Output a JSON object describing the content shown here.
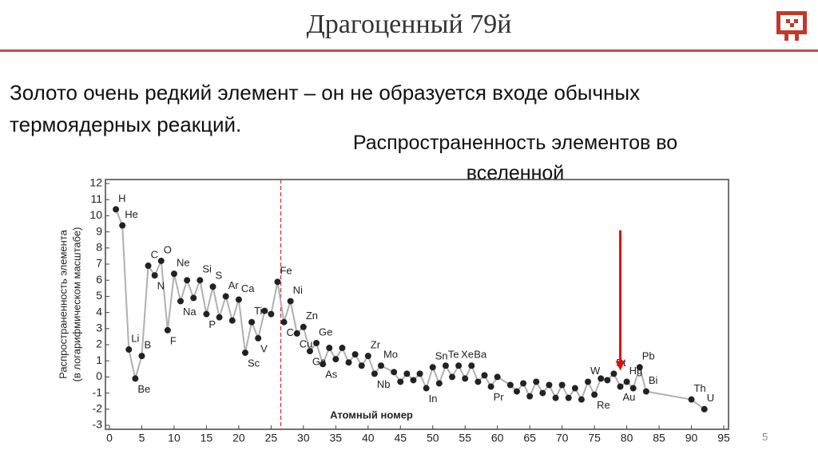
{
  "slide": {
    "title": "Драгоценный 79й",
    "text": [
      "Золото очень редкий элемент – он не образуется входе обычных",
      "термоядерных реакций."
    ],
    "page_number": "5"
  },
  "chart_data": {
    "type": "line",
    "title": "Распространенность элементов во вселенной",
    "xlabel": "Атомный номер",
    "ylabel": [
      "Распространенность элемента",
      "(в логарифмическом масштабе)"
    ],
    "x": [
      1,
      2,
      3,
      4,
      5,
      6,
      7,
      8,
      9,
      10,
      11,
      12,
      13,
      14,
      15,
      16,
      17,
      18,
      19,
      20,
      21,
      22,
      23,
      24,
      25,
      26,
      27,
      28,
      29,
      30,
      31,
      32,
      33,
      34,
      35,
      36,
      37,
      38,
      39,
      40,
      41,
      42,
      44,
      45,
      46,
      47,
      48,
      49,
      50,
      51,
      52,
      53,
      54,
      55,
      56,
      57,
      58,
      59,
      60,
      62,
      63,
      64,
      65,
      66,
      67,
      68,
      69,
      70,
      71,
      72,
      73,
      74,
      75,
      76,
      77,
      78,
      79,
      80,
      81,
      82,
      83,
      90,
      92
    ],
    "series": [
      {
        "name": "Распространенность",
        "color": "#b0b0b0",
        "marker_color": "#222222",
        "values": [
          10.4,
          9.4,
          1.7,
          -0.1,
          1.3,
          6.9,
          6.3,
          7.2,
          2.9,
          6.4,
          4.7,
          6.0,
          4.9,
          6.0,
          3.9,
          5.6,
          3.7,
          5.0,
          3.5,
          4.8,
          1.5,
          3.4,
          2.4,
          4.1,
          3.9,
          5.9,
          3.4,
          4.7,
          2.7,
          3.1,
          1.6,
          2.1,
          0.8,
          1.8,
          1.1,
          1.8,
          0.9,
          1.4,
          0.7,
          1.3,
          0.2,
          0.7,
          0.3,
          -0.3,
          0.2,
          -0.2,
          0.2,
          -0.7,
          0.6,
          -0.4,
          0.7,
          0,
          0.7,
          -0.1,
          0.7,
          -0.3,
          0.1,
          -0.6,
          0,
          -0.5,
          -0.9,
          -0.4,
          -1.2,
          -0.3,
          -1.0,
          -0.5,
          -1.3,
          -0.5,
          -1.3,
          -0.7,
          -1.4,
          -0.3,
          -1.1,
          -0.1,
          -0.2,
          0.2,
          -0.6,
          -0.3,
          -0.7,
          0.6,
          -0.9,
          -1.4,
          -2.0
        ]
      }
    ],
    "point_labels": [
      "H",
      "He",
      "Li",
      "Be",
      "B",
      "C",
      "N",
      "O",
      "F",
      "Ne",
      "Na",
      null,
      null,
      "Si",
      "P",
      "S",
      null,
      "Ar",
      null,
      "Ca",
      "Sc",
      "Ti",
      "V",
      null,
      null,
      "Fe",
      "Co",
      "Ni",
      "Cu",
      "Zn",
      "Ga",
      "Ge",
      "As",
      null,
      null,
      null,
      null,
      null,
      null,
      "Zr",
      "Nb",
      "Mo",
      null,
      null,
      null,
      null,
      null,
      "In",
      "Sn",
      null,
      "Te",
      null,
      "Xe",
      null,
      "Ba",
      null,
      null,
      "Pr",
      null,
      null,
      null,
      null,
      null,
      null,
      null,
      null,
      null,
      null,
      null,
      null,
      null,
      "W",
      "Re",
      null,
      null,
      "Pt",
      "Au",
      "Hg",
      null,
      "Pb",
      "Bi",
      "Th",
      "U"
    ],
    "xlim": [
      0,
      95
    ],
    "xticks": [
      0,
      5,
      10,
      15,
      20,
      25,
      30,
      35,
      40,
      45,
      50,
      55,
      60,
      65,
      70,
      75,
      80,
      85,
      90,
      95
    ],
    "ylim": [
      -3,
      12
    ],
    "yticks": [
      -3,
      -2,
      -1,
      0,
      1,
      2,
      3,
      4,
      5,
      6,
      7,
      8,
      9,
      10,
      11,
      12
    ],
    "vline": {
      "x": 26.5,
      "color": "#d93030"
    },
    "arrow": {
      "x": 79,
      "y_from": 9.1,
      "y_to": 0.4,
      "color": "#e01010"
    }
  }
}
